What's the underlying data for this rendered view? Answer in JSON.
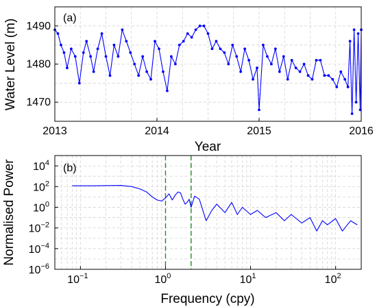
{
  "chart_data": [
    {
      "panel": "(a)",
      "type": "line",
      "xlabel": "Year",
      "ylabel": "Water Level (m)",
      "xlim": [
        2013,
        2016
      ],
      "ylim": [
        1465,
        1495
      ],
      "x_ticks": [
        "2013",
        "2014",
        "2015",
        "2016"
      ],
      "y_ticks": [
        "1470",
        "1480",
        "1490"
      ],
      "grid": true,
      "marker": "dot",
      "series": [
        {
          "color": "#0000ff",
          "x": [
            2013.0,
            2013.03,
            2013.06,
            2013.09,
            2013.12,
            2013.16,
            2013.2,
            2013.24,
            2013.28,
            2013.31,
            2013.35,
            2013.38,
            2013.42,
            2013.46,
            2013.5,
            2013.54,
            2013.58,
            2013.62,
            2013.66,
            2013.7,
            2013.74,
            2013.78,
            2013.82,
            2013.86,
            2013.9,
            2013.94,
            2013.98,
            2014.02,
            2014.06,
            2014.1,
            2014.14,
            2014.18,
            2014.22,
            2014.26,
            2014.3,
            2014.34,
            2014.38,
            2014.42,
            2014.46,
            2014.5,
            2014.54,
            2014.58,
            2014.62,
            2014.66,
            2014.7,
            2014.74,
            2014.78,
            2014.82,
            2014.86,
            2014.9,
            2014.94,
            2014.98,
            2015.0,
            2015.04,
            2015.08,
            2015.12,
            2015.16,
            2015.2,
            2015.24,
            2015.28,
            2015.32,
            2015.36,
            2015.4,
            2015.44,
            2015.48,
            2015.52,
            2015.56,
            2015.6,
            2015.64,
            2015.68,
            2015.72,
            2015.76,
            2015.8,
            2015.84,
            2015.87,
            2015.89,
            2015.91,
            2015.93,
            2015.95,
            2015.97,
            2015.99,
            2016.0
          ],
          "y": [
            1489,
            1488,
            1485,
            1483,
            1479,
            1484,
            1482,
            1475,
            1483,
            1486,
            1482,
            1478,
            1484,
            1488,
            1482,
            1477,
            1485,
            1482,
            1489,
            1486,
            1483,
            1480,
            1477,
            1482,
            1478,
            1476,
            1486,
            1484,
            1478,
            1473,
            1482,
            1480,
            1485,
            1486,
            1488,
            1487,
            1489,
            1490,
            1490,
            1488,
            1484,
            1486,
            1484,
            1483,
            1480,
            1485,
            1482,
            1478,
            1484,
            1481,
            1476,
            1479,
            1468,
            1485,
            1482,
            1480,
            1484,
            1478,
            1482,
            1476,
            1481,
            1479,
            1478,
            1480,
            1477,
            1476,
            1481,
            1481,
            1477,
            1477,
            1476,
            1474,
            1478,
            1476,
            1474,
            1486,
            1467,
            1489,
            1470,
            1488,
            1468,
            1489
          ]
        }
      ]
    },
    {
      "panel": "(b)",
      "type": "line",
      "xlabel": "Frequency (cpy)",
      "ylabel": "Normalised Power",
      "x_scale": "log",
      "y_scale": "log",
      "xlim": [
        0.05,
        200
      ],
      "ylim": [
        1e-06,
        100000.0
      ],
      "x_ticks": [
        {
          "value": 0.1,
          "base": "10",
          "exp": "−1"
        },
        {
          "value": 1,
          "base": "10",
          "exp": "0"
        },
        {
          "value": 10,
          "base": "10",
          "exp": "1"
        },
        {
          "value": 100,
          "base": "10",
          "exp": "2"
        }
      ],
      "y_ticks": [
        {
          "value": 10000.0,
          "base": "10",
          "exp": "4"
        },
        {
          "value": 100.0,
          "base": "10",
          "exp": "2"
        },
        {
          "value": 1.0,
          "base": "10",
          "exp": "0"
        },
        {
          "value": 0.01,
          "base": "10",
          "exp": "−2"
        },
        {
          "value": 0.0001,
          "base": "10",
          "exp": "−4"
        },
        {
          "value": 1e-06,
          "base": "10",
          "exp": "−6"
        }
      ],
      "grid": true,
      "reference_lines": [
        {
          "x": 1,
          "color": "#1e8a1e",
          "style": "dashed"
        },
        {
          "x": 2,
          "color": "#1e8a1e",
          "style": "dashed"
        }
      ],
      "series": [
        {
          "color": "#0000ff",
          "x": [
            0.08,
            0.1,
            0.15,
            0.2,
            0.3,
            0.4,
            0.5,
            0.6,
            0.7,
            0.8,
            0.9,
            1.0,
            1.1,
            1.2,
            1.3,
            1.4,
            1.5,
            1.6,
            1.7,
            1.8,
            1.9,
            2.0,
            2.2,
            2.5,
            3.0,
            3.5,
            4,
            5,
            6,
            7,
            8,
            10,
            12,
            15,
            20,
            25,
            30,
            40,
            50,
            60,
            70,
            80,
            100,
            120,
            150,
            180
          ],
          "y": [
            120,
            120,
            120,
            125,
            130,
            100,
            60,
            30,
            10,
            5,
            4,
            8,
            20,
            5,
            15,
            30,
            25,
            6,
            2,
            3,
            6,
            1,
            12,
            6,
            0.05,
            0.5,
            2,
            0.3,
            3,
            0.2,
            1,
            0.2,
            0.5,
            0.1,
            0.3,
            0.05,
            0.2,
            0.03,
            0.1,
            0.005,
            0.05,
            0.02,
            0.08,
            0.005,
            0.05,
            0.02
          ]
        }
      ]
    }
  ]
}
